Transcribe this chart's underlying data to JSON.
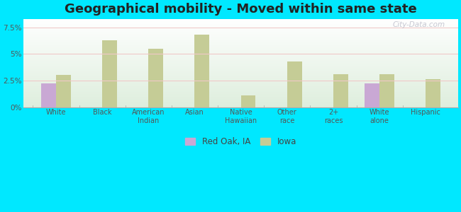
{
  "title": "Geographical mobility - Moved within same state",
  "categories": [
    "White",
    "Black",
    "American\nIndian",
    "Asian",
    "Native\nHawaiian",
    "Other\nrace",
    "2+\nraces",
    "White\nalone",
    "Hispanic"
  ],
  "red_oak_values": [
    2.2,
    0,
    0,
    0,
    0,
    0,
    0,
    2.2,
    0
  ],
  "iowa_values": [
    3.0,
    6.3,
    5.5,
    6.8,
    1.1,
    4.3,
    3.1,
    3.1,
    2.6
  ],
  "red_oak_color": "#c9a8d4",
  "iowa_color": "#c5cc96",
  "background_outer": "#00e8ff",
  "background_inner_top": "#ffffff",
  "background_inner_bottom": "#deeedd",
  "title_fontsize": 13,
  "bar_width": 0.32,
  "ylim": [
    0,
    8.3
  ],
  "yticks": [
    0,
    2.5,
    5.0,
    7.5
  ],
  "ytick_labels": [
    "0%",
    "2.5%",
    "5%",
    "7.5%"
  ],
  "legend_labels": [
    "Red Oak, IA",
    "Iowa"
  ],
  "watermark": "City-Data.com"
}
